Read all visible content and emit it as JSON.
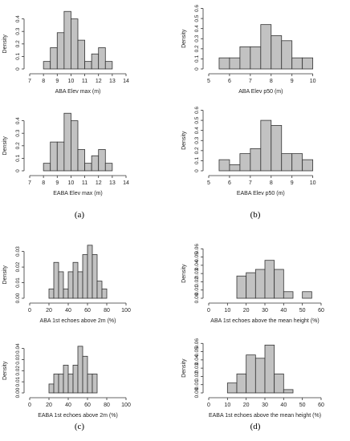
{
  "captions": [
    "(a)",
    "(b)",
    "(c)",
    "(d)"
  ],
  "chart_data": [
    {
      "type": "bar",
      "panel": "(a)",
      "xlabel": "ABA Elev max (m)",
      "ylabel": "Density",
      "xlim": [
        7,
        14
      ],
      "ylim": [
        0,
        0.5
      ],
      "xticks": [
        7,
        8,
        9,
        10,
        11,
        12,
        13,
        14
      ],
      "yticks": [
        0.0,
        0.1,
        0.2,
        0.3,
        0.4
      ],
      "bin_edges": [
        8,
        8.5,
        9,
        9.5,
        10,
        10.5,
        11,
        11.5,
        12,
        12.5,
        13
      ],
      "values": [
        0.06,
        0.17,
        0.29,
        0.46,
        0.4,
        0.23,
        0.06,
        0.12,
        0.17,
        0.06
      ],
      "grid": false
    },
    {
      "type": "bar",
      "panel": "(b)",
      "xlabel": "ABA Elev p50 (m)",
      "ylabel": "Density",
      "xlim": [
        5,
        10.4
      ],
      "ylim": [
        0,
        0.62
      ],
      "xticks": [
        5,
        6,
        7,
        8,
        9,
        10
      ],
      "yticks": [
        0.0,
        0.1,
        0.2,
        0.3,
        0.4,
        0.5,
        0.6
      ],
      "bin_edges": [
        5.5,
        6,
        6.5,
        7,
        7.5,
        8,
        8.5,
        9,
        9.5,
        10
      ],
      "values": [
        0.11,
        0.11,
        0.22,
        0.22,
        0.44,
        0.33,
        0.28,
        0.11,
        0.11
      ],
      "grid": false
    },
    {
      "type": "bar",
      "panel": "(a)",
      "xlabel": "EABA Elev max (m)",
      "ylabel": "Density",
      "xlim": [
        7,
        14
      ],
      "ylim": [
        0,
        0.5
      ],
      "xticks": [
        7,
        8,
        9,
        10,
        11,
        12,
        13,
        14
      ],
      "yticks": [
        0.0,
        0.1,
        0.2,
        0.3,
        0.4
      ],
      "bin_edges": [
        8,
        8.5,
        9,
        9.5,
        10,
        10.5,
        11,
        11.5,
        12,
        12.5,
        13
      ],
      "values": [
        0.06,
        0.23,
        0.23,
        0.46,
        0.4,
        0.17,
        0.06,
        0.12,
        0.17,
        0.06
      ],
      "grid": false
    },
    {
      "type": "bar",
      "panel": "(b)",
      "xlabel": "EABA Elev p50 (m)",
      "ylabel": "Density",
      "xlim": [
        5,
        10.4
      ],
      "ylim": [
        0,
        0.62
      ],
      "xticks": [
        5,
        6,
        7,
        8,
        9,
        10
      ],
      "yticks": [
        0.0,
        0.1,
        0.2,
        0.3,
        0.4,
        0.5,
        0.6
      ],
      "bin_edges": [
        5.5,
        6,
        6.5,
        7,
        7.5,
        8,
        8.5,
        9,
        9.5,
        10
      ],
      "values": [
        0.11,
        0.06,
        0.17,
        0.22,
        0.5,
        0.45,
        0.17,
        0.17,
        0.11
      ],
      "grid": false
    },
    {
      "type": "bar",
      "panel": "(c)",
      "xlabel": "ABA 1st echoes above 2m (%)",
      "ylabel": "Density",
      "xlim": [
        0,
        100
      ],
      "ylim": [
        0,
        0.037
      ],
      "xticks": [
        0,
        20,
        40,
        60,
        80,
        100
      ],
      "yticks": [
        0.0,
        0.01,
        0.02,
        0.03
      ],
      "tick_labels_y": [
        "0.00",
        "0.01",
        "0.02",
        "0.03"
      ],
      "bin_edges": [
        20,
        25,
        30,
        35,
        40,
        45,
        50,
        55,
        60,
        65,
        70,
        75,
        80
      ],
      "values": [
        0.006,
        0.023,
        0.017,
        0.006,
        0.017,
        0.023,
        0.017,
        0.028,
        0.034,
        0.028,
        0.011,
        0.006
      ],
      "grid": false
    },
    {
      "type": "bar",
      "panel": "(d)",
      "xlabel": "ABA 1st echoes above the mean height (%)",
      "ylabel": "Density",
      "xlim": [
        0,
        60
      ],
      "ylim": [
        0,
        0.07
      ],
      "xticks": [
        0,
        10,
        20,
        30,
        40,
        50,
        60
      ],
      "yticks": [
        0.0,
        0.01,
        0.02,
        0.03,
        0.04,
        0.05,
        0.06
      ],
      "tick_labels_y": [
        "0.00",
        "0.01",
        "0.02",
        "0.03",
        "0.04",
        "0.05",
        "0.06"
      ],
      "bin_edges": [
        15,
        20,
        25,
        30,
        35,
        40,
        45,
        50,
        55
      ],
      "values": [
        0.027,
        0.031,
        0.035,
        0.046,
        0.035,
        0.008,
        0.0,
        0.008
      ],
      "grid": false
    },
    {
      "type": "bar",
      "panel": "(c)",
      "xlabel": "EABA 1st echoes above 2m (%)",
      "ylabel": "Density",
      "xlim": [
        0,
        100
      ],
      "ylim": [
        0,
        0.052
      ],
      "xticks": [
        0,
        20,
        40,
        60,
        80,
        100
      ],
      "yticks": [
        0.0,
        0.01,
        0.02,
        0.03,
        0.04
      ],
      "tick_labels_y": [
        "0.00",
        "0.01",
        "0.02",
        "0.03",
        "0.04"
      ],
      "bin_edges": [
        20,
        25,
        30,
        35,
        40,
        45,
        50,
        55,
        60,
        65,
        70
      ],
      "values": [
        0.008,
        0.017,
        0.017,
        0.025,
        0.017,
        0.025,
        0.042,
        0.033,
        0.017,
        0.017
      ],
      "grid": false
    },
    {
      "type": "bar",
      "panel": "(d)",
      "xlabel": "EABA 1st echoes above the mean height (%)",
      "ylabel": "Density",
      "xlim": [
        0,
        60
      ],
      "ylim": [
        0,
        0.07
      ],
      "xticks": [
        0,
        10,
        20,
        30,
        40,
        50,
        60
      ],
      "yticks": [
        0.0,
        0.01,
        0.02,
        0.03,
        0.04,
        0.05,
        0.06
      ],
      "tick_labels_y": [
        "0.00",
        "0.01",
        "0.02",
        "0.03",
        "0.04",
        "0.05",
        "0.06"
      ],
      "bin_edges": [
        10,
        15,
        20,
        25,
        30,
        35,
        40,
        45
      ],
      "values": [
        0.012,
        0.023,
        0.046,
        0.042,
        0.058,
        0.023,
        0.004
      ],
      "grid": false
    }
  ]
}
